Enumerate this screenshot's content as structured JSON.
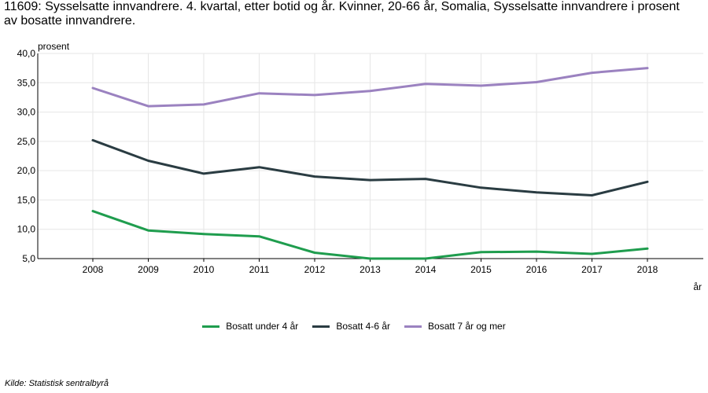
{
  "chart_data": {
    "type": "line",
    "title": "11609: Sysselsatte innvandrere. 4. kvartal, etter botid og år. Kvinner, 20-66 år, Somalia, Sysselsatte innvandrere i prosent av bosatte innvandrere.",
    "ylabel": "prosent",
    "xlabel": "år",
    "categories": [
      "2008",
      "2009",
      "2010",
      "2011",
      "2012",
      "2013",
      "2014",
      "2015",
      "2016",
      "2017",
      "2018"
    ],
    "ylim": [
      5,
      40
    ],
    "yticks": [
      "5,0",
      "10,0",
      "15,0",
      "20,0",
      "25,0",
      "30,0",
      "35,0",
      "40,0"
    ],
    "grid": true,
    "legend_position": "bottom",
    "series": [
      {
        "name": "Bosatt under 4 år",
        "color": "#1f9d4e",
        "values": [
          13.1,
          9.8,
          9.2,
          8.8,
          6.0,
          5.0,
          5.0,
          6.1,
          6.2,
          5.8,
          6.7
        ]
      },
      {
        "name": "Bosatt 4-6 år",
        "color": "#2a3c42",
        "values": [
          25.2,
          21.7,
          19.5,
          20.6,
          19.0,
          18.4,
          18.6,
          17.1,
          16.3,
          15.8,
          18.1
        ]
      },
      {
        "name": "Bosatt 7 år og mer",
        "color": "#9b82c0",
        "values": [
          34.1,
          31.0,
          31.3,
          33.2,
          32.9,
          33.6,
          34.8,
          34.5,
          35.1,
          36.7,
          37.5
        ]
      }
    ]
  },
  "source": "Kilde:  Statistisk sentralbyrå"
}
